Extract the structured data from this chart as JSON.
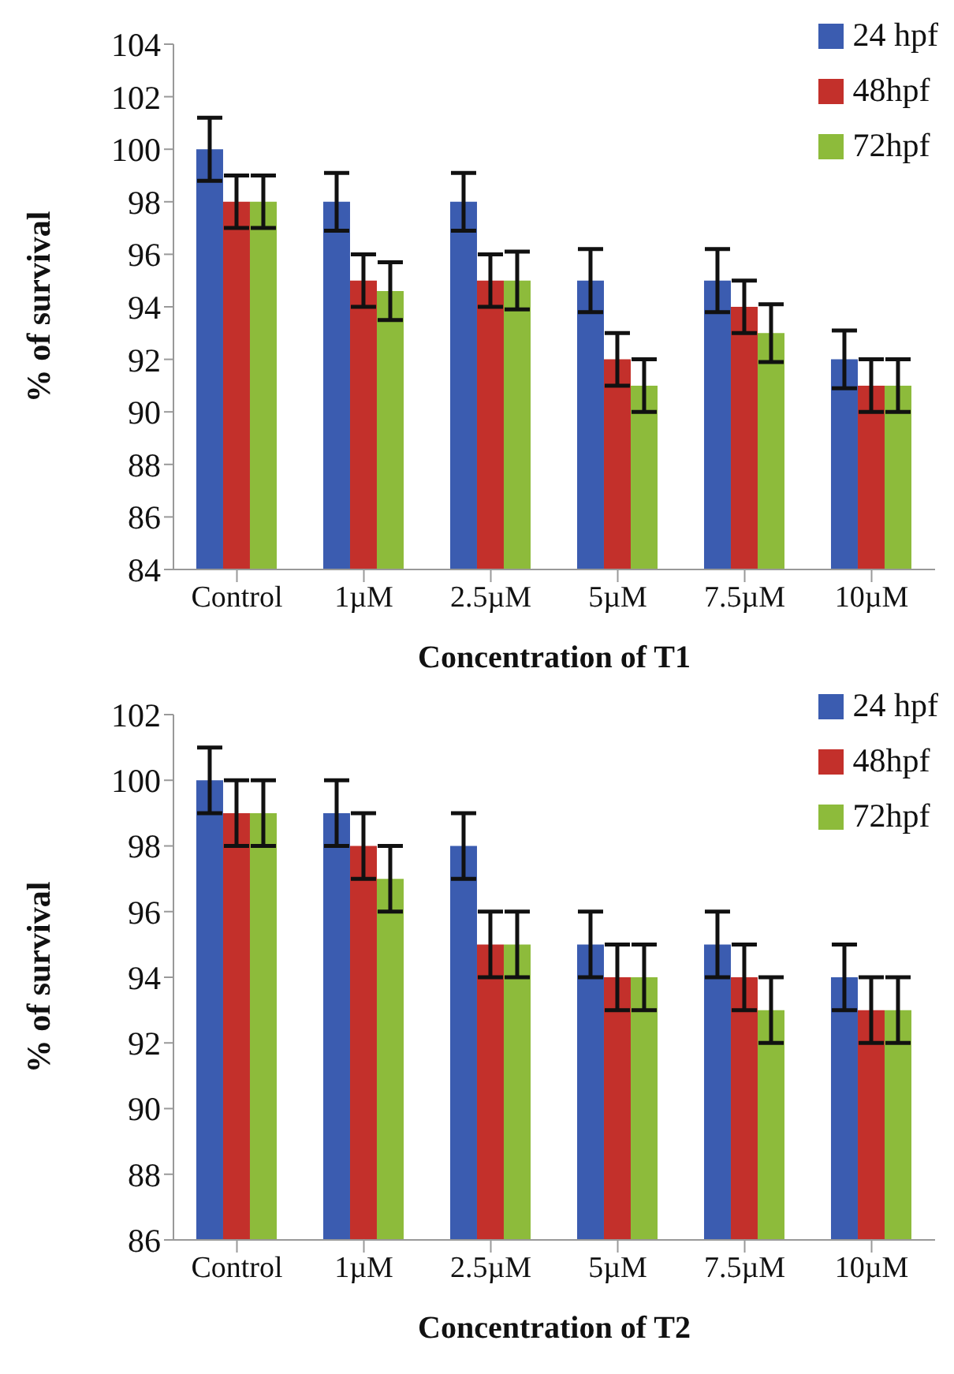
{
  "chart_data": [
    {
      "type": "bar",
      "categories": [
        "Control",
        "1µM",
        "2.5µM",
        "5µM",
        "7.5µM",
        "10µM"
      ],
      "xlabel": "Concentration of T1",
      "ylabel": "% of survival",
      "ylim": [
        84,
        104
      ],
      "yticks": [
        84,
        86,
        88,
        90,
        92,
        94,
        96,
        98,
        100,
        102,
        104
      ],
      "grid": false,
      "legend": "top right",
      "series": [
        {
          "name": "24 hpf",
          "color": "#3b5cb0",
          "values": [
            100,
            98,
            98,
            95,
            95,
            92
          ],
          "errors": [
            1.2,
            1.1,
            1.1,
            1.2,
            1.2,
            1.1
          ]
        },
        {
          "name": "48hpf",
          "color": "#c3302b",
          "values": [
            98,
            95,
            95,
            92,
            94,
            91
          ],
          "errors": [
            1,
            1,
            1,
            1,
            1,
            1
          ]
        },
        {
          "name": "72hpf",
          "color": "#8dbb3b",
          "values": [
            98,
            94.6,
            95,
            91,
            93,
            91
          ],
          "errors": [
            1,
            1.1,
            1.1,
            1,
            1.1,
            1
          ]
        }
      ]
    },
    {
      "type": "bar",
      "categories": [
        "Control",
        "1µM",
        "2.5µM",
        "5µM",
        "7.5µM",
        "10µM"
      ],
      "xlabel": "Concentration of T2",
      "ylabel": "% of survival",
      "ylim": [
        86,
        102
      ],
      "yticks": [
        86,
        88,
        90,
        92,
        94,
        96,
        98,
        100,
        102
      ],
      "grid": false,
      "legend": "top right",
      "series": [
        {
          "name": "24 hpf",
          "color": "#3b5cb0",
          "values": [
            100,
            99,
            98,
            95,
            95,
            94
          ],
          "errors": [
            1,
            1,
            1,
            1,
            1,
            1
          ]
        },
        {
          "name": "48hpf",
          "color": "#c3302b",
          "values": [
            99,
            98,
            95,
            94,
            94,
            93
          ],
          "errors": [
            1,
            1,
            1,
            1,
            1,
            1
          ]
        },
        {
          "name": "72hpf",
          "color": "#8dbb3b",
          "values": [
            99,
            97,
            95,
            94,
            93,
            93
          ],
          "errors": [
            1,
            1,
            1,
            1,
            1,
            1
          ]
        }
      ]
    }
  ]
}
